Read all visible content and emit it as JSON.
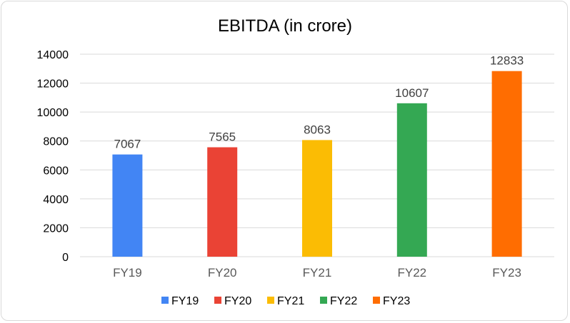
{
  "chart_data": {
    "type": "bar",
    "title": "EBITDA (in crore)",
    "categories": [
      "FY19",
      "FY20",
      "FY21",
      "FY22",
      "FY23"
    ],
    "values": [
      7067,
      7565,
      8063,
      10607,
      12833
    ],
    "colors": [
      "#4285f4",
      "#ea4335",
      "#fbbc04",
      "#34a853",
      "#ff6d01"
    ],
    "ylim": [
      0,
      14000
    ],
    "yticks": [
      0,
      2000,
      4000,
      6000,
      8000,
      10000,
      12000,
      14000
    ],
    "xlabel": "",
    "ylabel": "",
    "grid": true,
    "legend": {
      "position": "bottom",
      "entries": [
        "FY19",
        "FY20",
        "FY21",
        "FY22",
        "FY23"
      ]
    }
  }
}
